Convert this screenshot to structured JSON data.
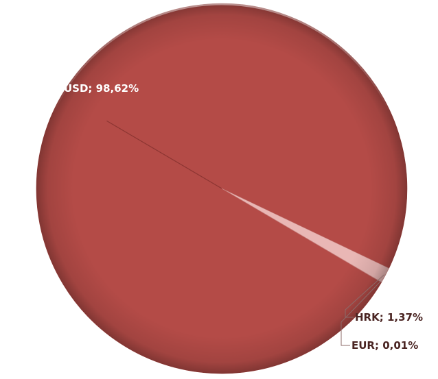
{
  "chart_data": {
    "type": "pie",
    "title": "",
    "slices": [
      {
        "name": "USD",
        "value": 98.62,
        "label": "USD; 98,62%",
        "color": "#b44b47"
      },
      {
        "name": "HRK",
        "value": 1.37,
        "label": "HRK; 1,37%",
        "color": "#e9b7b5"
      },
      {
        "name": "EUR",
        "value": 0.01,
        "label": "EUR; 0,01%",
        "color": "#d98e8b"
      }
    ],
    "legend": "none",
    "label_colors": {
      "inside": "#ffffff",
      "outside": "#4a2422"
    },
    "leader_color": "#8c6b6a"
  }
}
